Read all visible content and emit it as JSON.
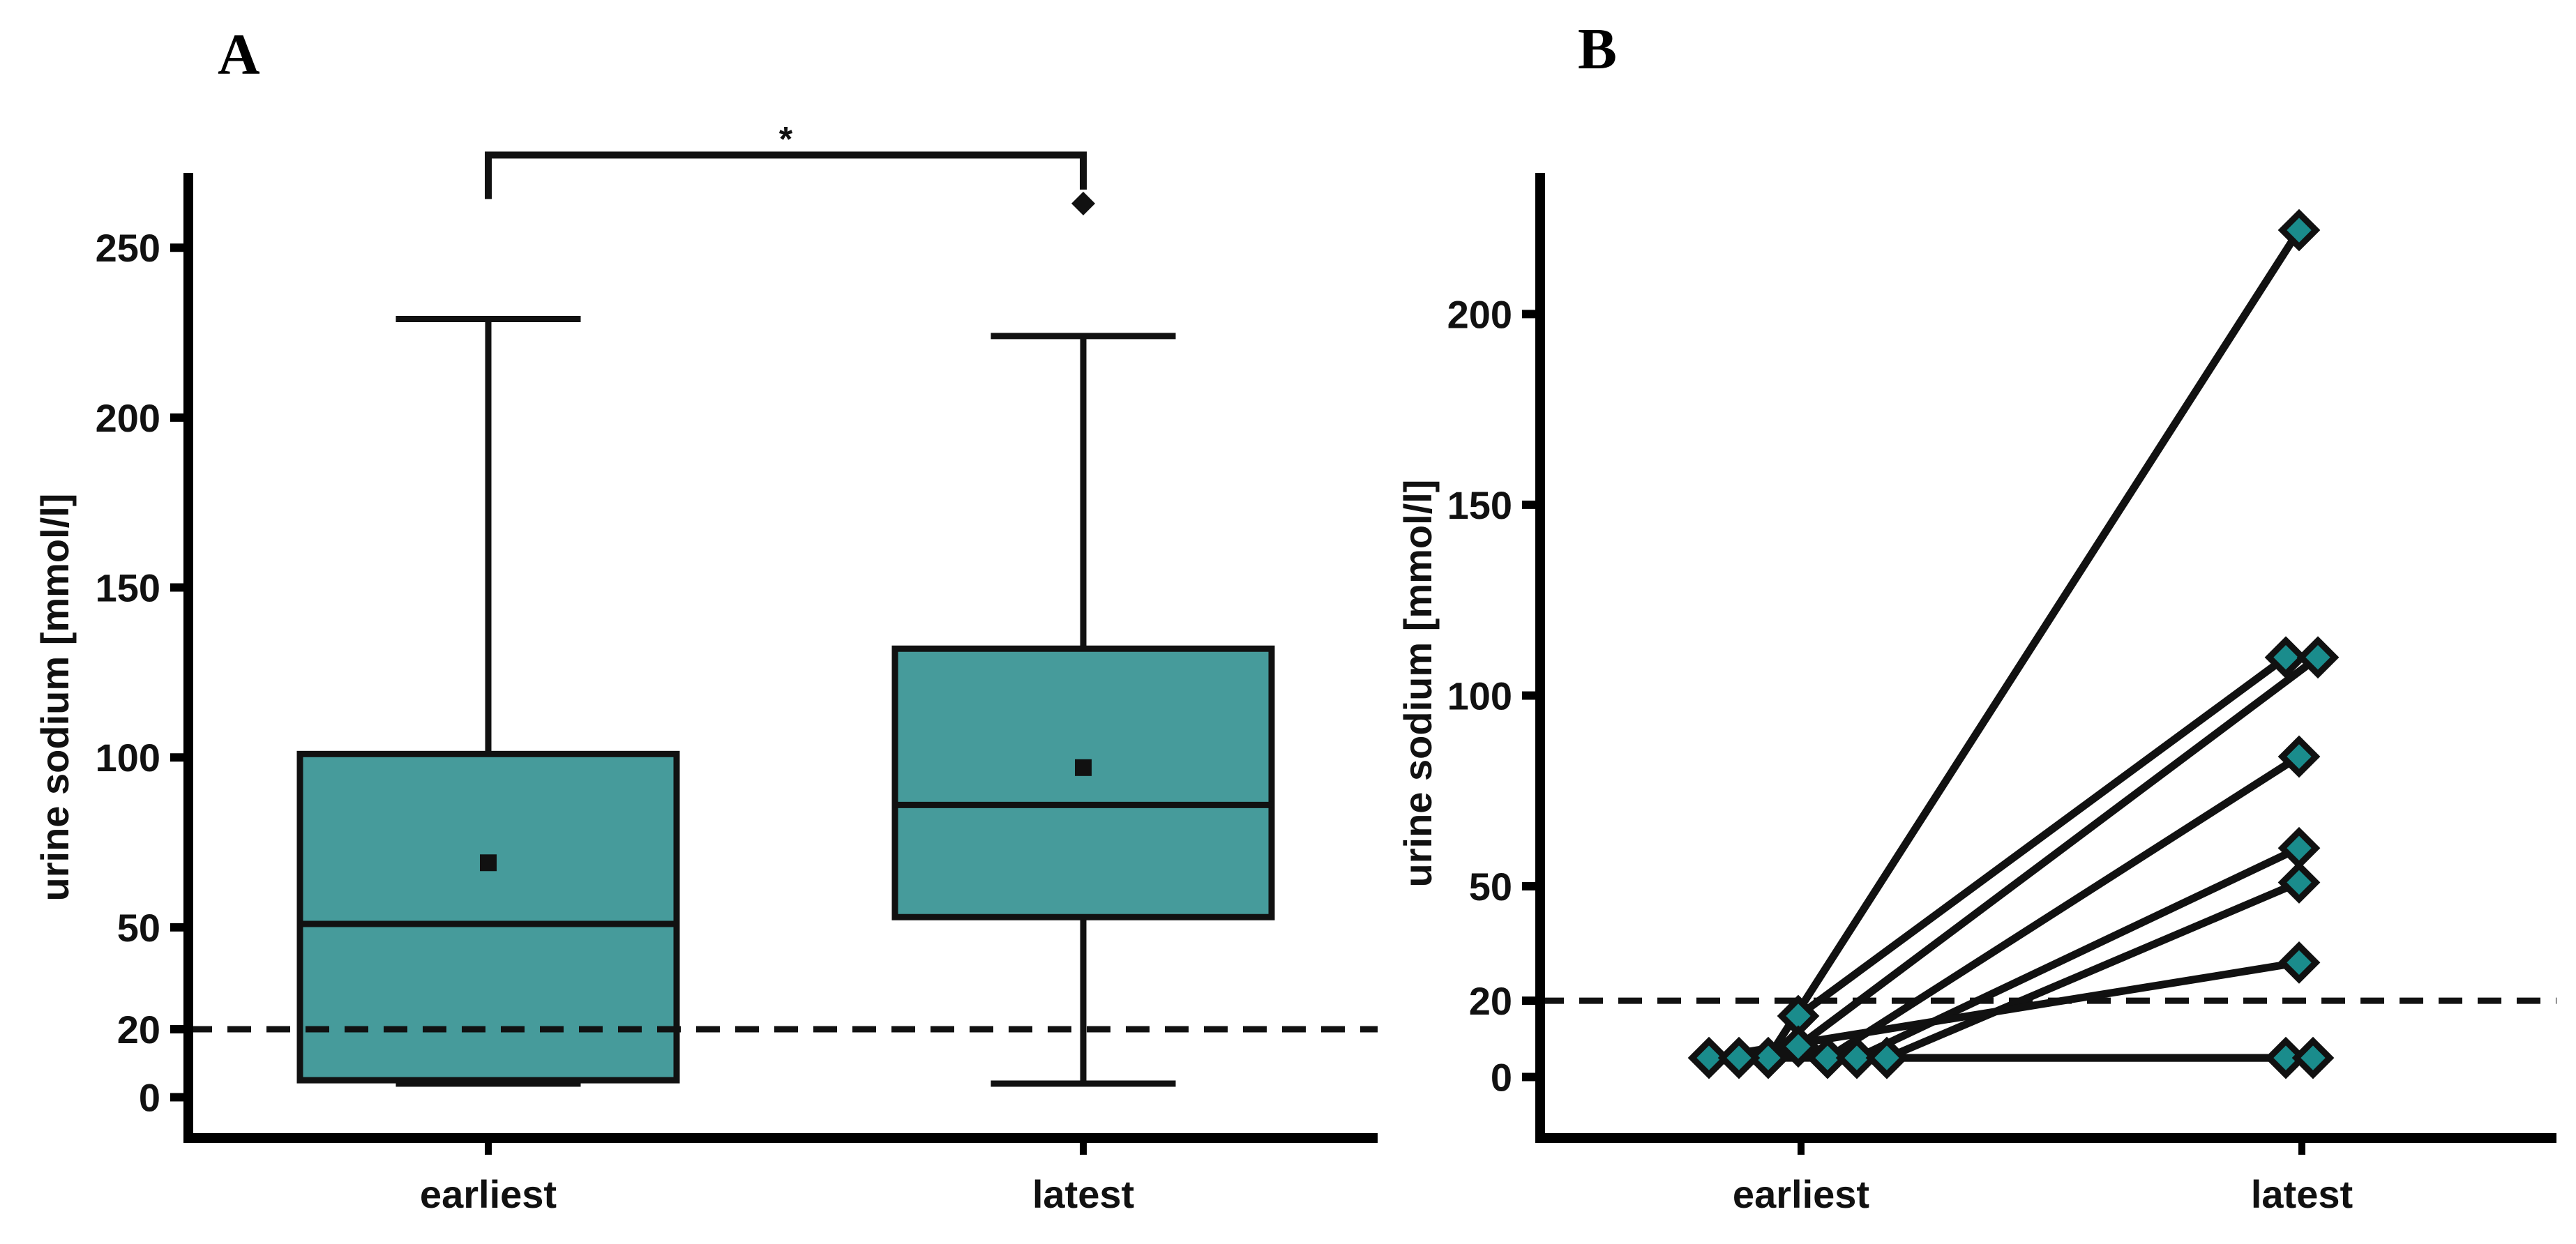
{
  "chart_data": [
    {
      "panel": "A",
      "type": "box",
      "ylabel": "urine sodium [mmol/l]",
      "xlabel": "",
      "categories": [
        "earliest",
        "latest"
      ],
      "ylim": [
        -12,
        272
      ],
      "yticks": [
        0,
        20,
        50,
        100,
        150,
        200,
        250
      ],
      "reference_line": {
        "value": 20,
        "style": "dashed"
      },
      "boxes": [
        {
          "name": "earliest",
          "whisker_low": 4,
          "q1": 5,
          "median": 51,
          "q3": 101,
          "whisker_high": 229,
          "mean": 69,
          "outliers": []
        },
        {
          "name": "latest",
          "whisker_low": 4,
          "q1": 53,
          "median": 86,
          "q3": 132,
          "whisker_high": 224,
          "mean": 97,
          "outliers": [
            263
          ]
        }
      ],
      "significance": {
        "from": "earliest",
        "to": "latest",
        "label": "*",
        "level": 267
      },
      "colors": {
        "box_fill": "#469b9b",
        "line": "#111111"
      }
    },
    {
      "panel": "B",
      "type": "paired-line",
      "ylabel": "urine sodium [mmol/l]",
      "xlabel": "",
      "categories": [
        "earliest",
        "latest"
      ],
      "ylim": [
        -16,
        237
      ],
      "yticks": [
        0,
        20,
        50,
        100,
        150,
        200
      ],
      "reference_line": {
        "value": 20,
        "style": "dashed"
      },
      "pairs": [
        {
          "earliest": 5,
          "latest": 222
        },
        {
          "earliest": 16,
          "latest": 110
        },
        {
          "earliest": 8,
          "latest": 110
        },
        {
          "earliest": 5,
          "latest": 84
        },
        {
          "earliest": 5,
          "latest": 60
        },
        {
          "earliest": 5,
          "latest": 51
        },
        {
          "earliest": 5,
          "latest": 30
        },
        {
          "earliest": 5,
          "latest": 5
        },
        {
          "earliest": 5,
          "latest": 5
        }
      ],
      "colors": {
        "marker_fill": "#1a8c8c",
        "line": "#111111"
      }
    }
  ]
}
